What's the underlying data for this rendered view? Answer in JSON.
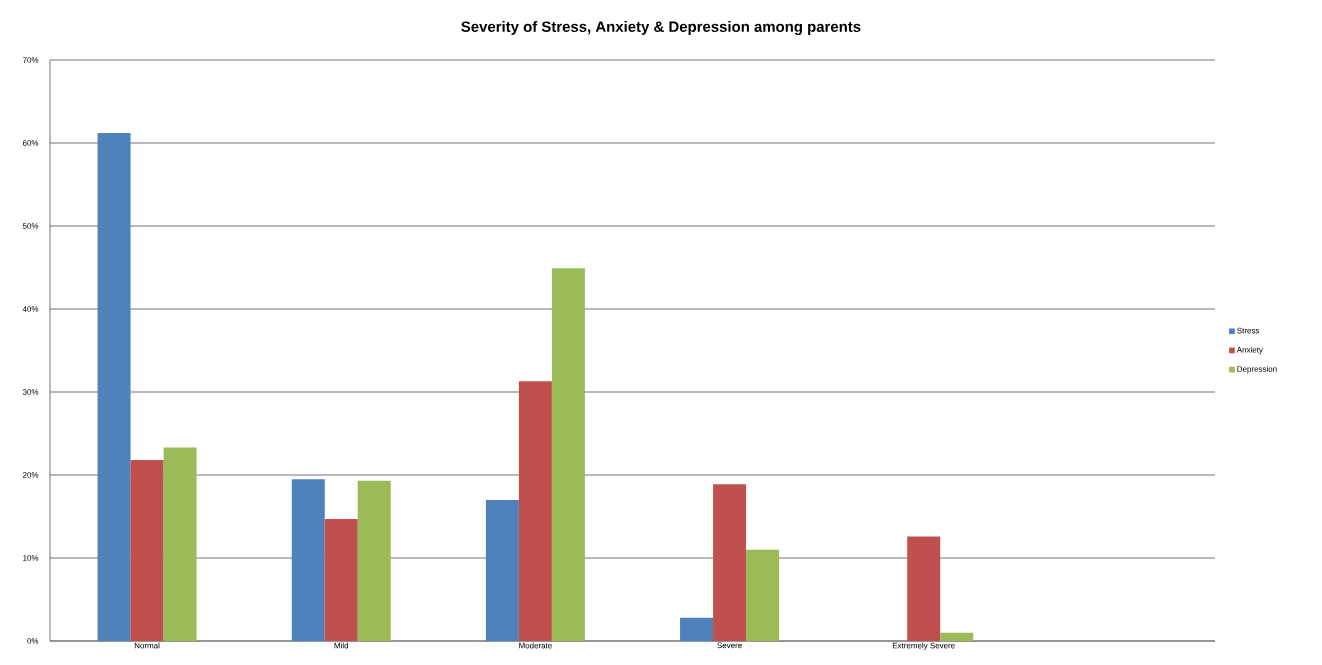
{
  "chart_data": {
    "type": "bar",
    "title": "Severity of Stress, Anxiety & Depression among parents",
    "categories": [
      "Normal",
      "Mild",
      "Moderate",
      "Severe",
      "Extremely Severe",
      null
    ],
    "series": [
      {
        "name": "Stress",
        "color": "#4f81bd",
        "values": [
          61.2,
          19.5,
          17.0,
          2.8,
          0,
          null
        ]
      },
      {
        "name": "Anxiety",
        "color": "#c0504d",
        "values": [
          21.8,
          14.7,
          31.3,
          18.9,
          12.6,
          null
        ]
      },
      {
        "name": "Depression",
        "color": "#9bbb59",
        "values": [
          23.3,
          19.3,
          44.9,
          11.0,
          1.0,
          null
        ]
      }
    ],
    "ylim": [
      0,
      70
    ],
    "yticks": [
      {
        "value": 0,
        "label": "0%"
      },
      {
        "value": 10,
        "label": "10%"
      },
      {
        "value": 20,
        "label": "20%"
      },
      {
        "value": 30,
        "label": "30%"
      },
      {
        "value": 40,
        "label": "40%"
      },
      {
        "value": 50,
        "label": "50%"
      },
      {
        "value": 60,
        "label": "60%"
      },
      {
        "value": 70,
        "label": "70%"
      }
    ],
    "grid": "y",
    "legend": "right"
  }
}
